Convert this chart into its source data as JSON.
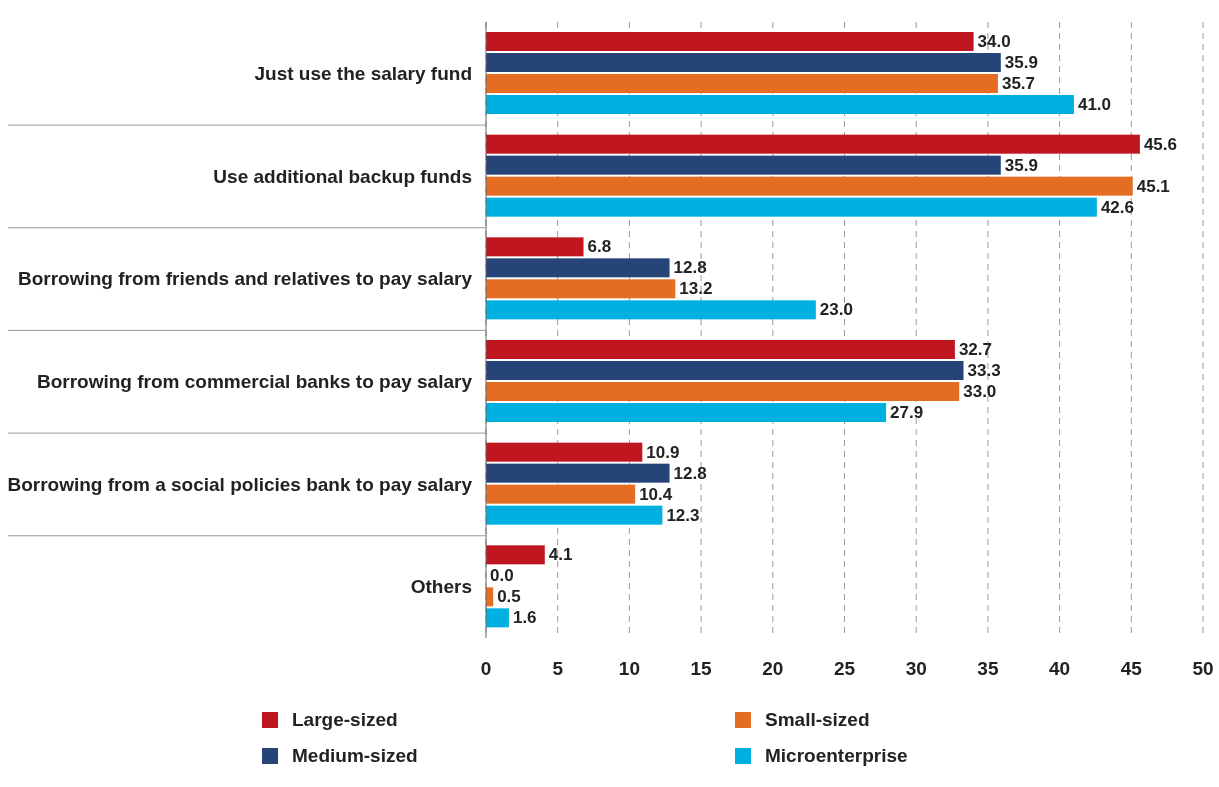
{
  "chart_data": {
    "type": "bar",
    "orientation": "horizontal",
    "categories": [
      "Just use the salary fund",
      "Use additional backup funds",
      "Borrowing from friends and relatives to pay salary",
      "Borrowing from commercial banks to pay salary",
      "Borrowing from a social policies bank to pay salary",
      "Others"
    ],
    "series": [
      {
        "name": "Large-sized",
        "color": "#c0161f",
        "values": [
          34.0,
          45.6,
          6.8,
          32.7,
          10.9,
          4.1
        ],
        "value_labels": [
          "34.0",
          "45.6",
          "6.8",
          "32.7",
          "10.9",
          "4.1"
        ]
      },
      {
        "name": "Medium-sized",
        "color": "#264478",
        "values": [
          35.9,
          35.9,
          12.8,
          33.3,
          12.8,
          0.0
        ],
        "value_labels": [
          "35.9",
          "35.9",
          "12.8",
          "33.3",
          "12.8",
          "0.0"
        ]
      },
      {
        "name": "Small-sized",
        "color": "#e46c23",
        "values": [
          35.7,
          45.1,
          13.2,
          33.0,
          10.4,
          0.5
        ],
        "value_labels": [
          "35.7",
          "45.1",
          "13.2",
          "33.0",
          "10.4",
          "0.5"
        ]
      },
      {
        "name": "Microenterprise",
        "color": "#00b0e0",
        "values": [
          41.0,
          42.6,
          23.0,
          27.9,
          12.3,
          1.6
        ],
        "value_labels": [
          "41.0",
          "42.6",
          "23.0",
          "27.9",
          "12.3",
          "1.6"
        ]
      }
    ],
    "xlim": [
      0,
      50
    ],
    "xticks": [
      0,
      5,
      10,
      15,
      20,
      25,
      30,
      35,
      40,
      45,
      50
    ],
    "grid": "x",
    "legend": "bottom"
  }
}
